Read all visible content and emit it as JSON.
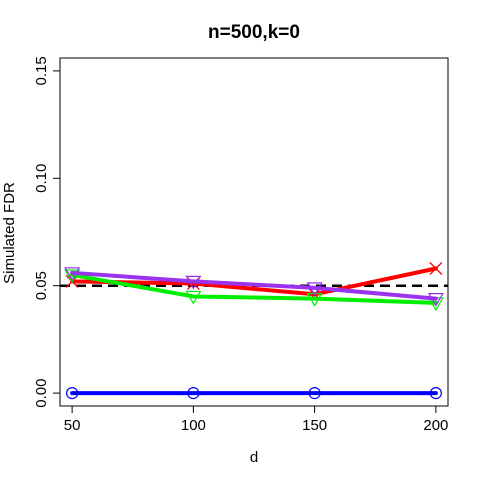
{
  "chart_data": {
    "type": "line",
    "title": "n=500,k=0",
    "xlabel": "d",
    "ylabel": "Simulated FDR",
    "x": [
      50,
      100,
      150,
      200
    ],
    "xlim": [
      45,
      205
    ],
    "ylim": [
      -0.006,
      0.156
    ],
    "xticks": [
      "50",
      "100",
      "150",
      "200"
    ],
    "yticks": [
      "0.00",
      "0.05",
      "0.10",
      "0.15"
    ],
    "grid": false,
    "legend": "none",
    "reference_line": {
      "y": 0.05,
      "style": "dashed",
      "color": "#000000"
    },
    "series": [
      {
        "values": [
          0.052,
          0.051,
          0.046,
          0.058
        ],
        "color": "#ff0000",
        "marker": "cross"
      },
      {
        "values": [
          0.055,
          0.045,
          0.044,
          0.042
        ],
        "color": "#00ee00",
        "marker": "triangle-down"
      },
      {
        "values": [
          0.056,
          0.052,
          0.049,
          0.044
        ],
        "color": "#9933ee",
        "marker": "triangle-down"
      },
      {
        "values": [
          0.0,
          0.0,
          0.0,
          0.0
        ],
        "color": "#0000ff",
        "marker": "circle"
      }
    ]
  }
}
